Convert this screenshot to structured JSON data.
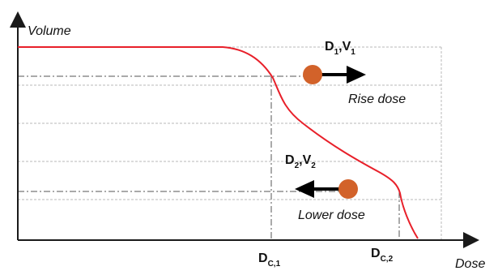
{
  "axes": {
    "y_label": "Volume",
    "x_label": "Dose"
  },
  "markers": {
    "dc1": {
      "main": "D",
      "sub": "C,1"
    },
    "dc2": {
      "main": "D",
      "sub": "C,2"
    }
  },
  "points": {
    "p1": {
      "d": "D",
      "d_sub": "1",
      "comma": ",",
      "v": "V",
      "v_sub": "1",
      "action": "Rise dose"
    },
    "p2": {
      "d": "D",
      "d_sub": "2",
      "comma": ",",
      "v": "V",
      "v_sub": "2",
      "action": "Lower dose"
    }
  },
  "colors": {
    "curve": "#e8202a",
    "ball": "#d2622a",
    "grid": "#b0b0b0",
    "axis": "#1a1a1a"
  }
}
